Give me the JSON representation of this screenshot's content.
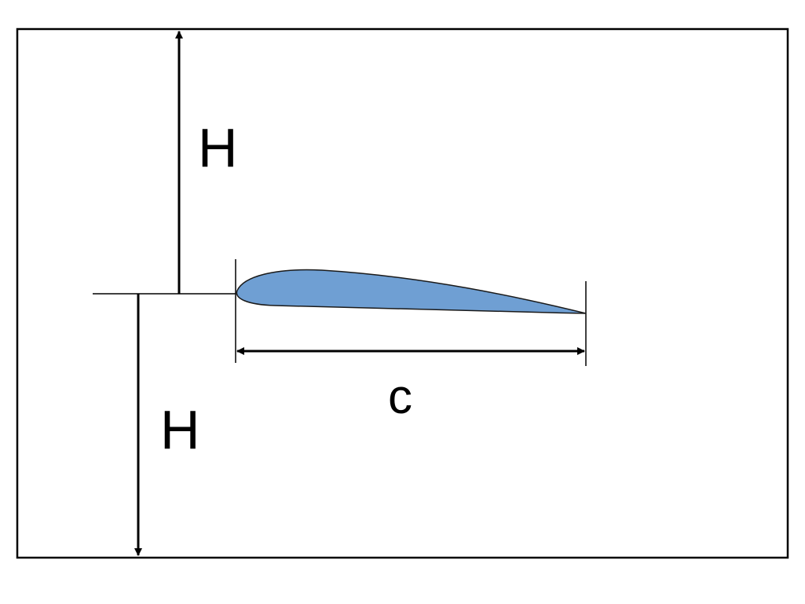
{
  "labels": {
    "height_above": "H",
    "height_below": "H",
    "chord": "c"
  },
  "colors": {
    "airfoil_fill": "#6f9fd3",
    "airfoil_stroke": "#1a1a1a",
    "line": "#000000",
    "background": "#ffffff"
  }
}
